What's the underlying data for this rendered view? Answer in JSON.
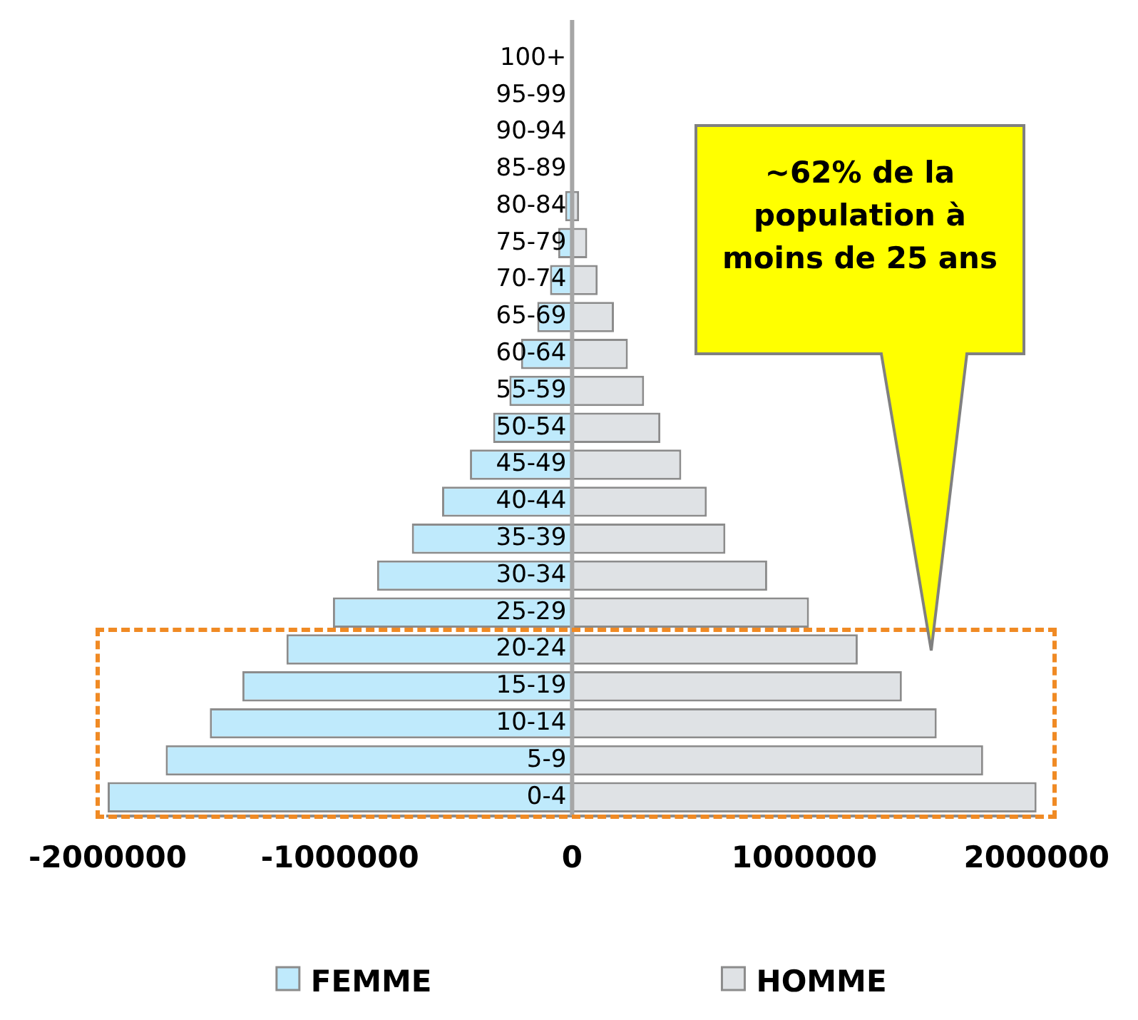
{
  "chart_data": {
    "type": "bar",
    "orientation": "horizontal",
    "stacked": true,
    "categories": [
      "100+",
      "95-99",
      "90-94",
      "85-89",
      "80-84",
      "75-79",
      "70-74",
      "65-69",
      "60-64",
      "55-59",
      "50-54",
      "45-49",
      "40-44",
      "35-39",
      "30-34",
      "25-29",
      "20-24",
      "15-19",
      "10-14",
      "5-9",
      "0-4"
    ],
    "series": [
      {
        "name": "FEMME",
        "color": "#bfeafc",
        "values": [
          0,
          0,
          0,
          0,
          -30000,
          -60000,
          -95000,
          -150000,
          -220000,
          -270000,
          -340000,
          -440000,
          -560000,
          -690000,
          -840000,
          -1030000,
          -1230000,
          -1420000,
          -1560000,
          -1750000,
          -2000000
        ]
      },
      {
        "name": "HOMME",
        "color": "#dfe2e5",
        "values": [
          0,
          0,
          0,
          0,
          30000,
          65000,
          110000,
          180000,
          240000,
          310000,
          380000,
          470000,
          580000,
          660000,
          840000,
          1020000,
          1230000,
          1420000,
          1570000,
          1770000,
          2000000
        ]
      }
    ],
    "xlim": [
      -2000000,
      2000000
    ],
    "xticks": [
      -2000000,
      -1000000,
      0,
      1000000,
      2000000
    ],
    "grid": false,
    "legend": "bottom",
    "annotations": [
      "~62% de la population à moins de 25 ans"
    ]
  }
}
